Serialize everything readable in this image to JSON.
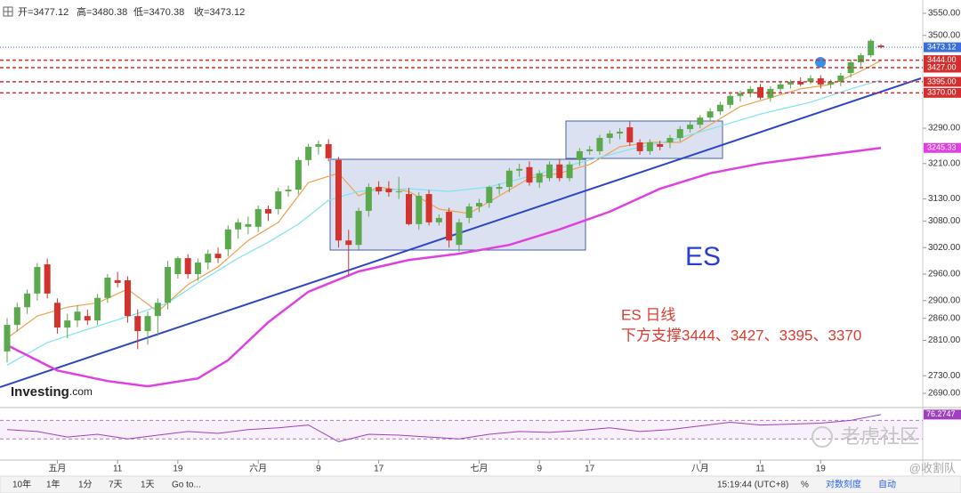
{
  "chart_data": {
    "type": "candlestick",
    "ohlc_labels": [
      "开=",
      "高=",
      "低=",
      "收="
    ],
    "up_color": "#5aa94c",
    "down_color": "#d1332e",
    "categories": [
      null,
      null,
      null,
      null,
      null,
      "五月",
      null,
      null,
      null,
      null,
      null,
      "11",
      null,
      null,
      null,
      null,
      null,
      "19",
      null,
      null,
      null,
      null,
      null,
      null,
      null,
      "六月",
      null,
      null,
      null,
      null,
      null,
      "9",
      null,
      null,
      null,
      null,
      null,
      "17",
      null,
      null,
      null,
      null,
      null,
      null,
      null,
      null,
      null,
      "七月",
      null,
      null,
      null,
      null,
      null,
      "9",
      null,
      null,
      null,
      null,
      "17",
      null,
      null,
      null,
      null,
      null,
      null,
      null,
      null,
      null,
      null,
      "八月",
      null,
      null,
      null,
      null,
      null,
      "11",
      null,
      null,
      null,
      null,
      null,
      "19",
      null,
      null,
      null,
      null,
      null,
      null
    ],
    "candles": [
      [
        2785,
        2860,
        2760,
        2845
      ],
      [
        2845,
        2895,
        2830,
        2885
      ],
      [
        2885,
        2925,
        2870,
        2916
      ],
      [
        2916,
        2985,
        2900,
        2976
      ],
      [
        2982,
        2995,
        2905,
        2916
      ],
      [
        2895,
        2905,
        2825,
        2839
      ],
      [
        2839,
        2870,
        2815,
        2855
      ],
      [
        2855,
        2890,
        2840,
        2875
      ],
      [
        2865,
        2880,
        2845,
        2855
      ],
      [
        2855,
        2915,
        2845,
        2906
      ],
      [
        2906,
        2960,
        2895,
        2952
      ],
      [
        2946,
        2965,
        2930,
        2940
      ],
      [
        2946,
        2955,
        2850,
        2865
      ],
      [
        2865,
        2880,
        2790,
        2831
      ],
      [
        2831,
        2875,
        2800,
        2865
      ],
      [
        2865,
        2905,
        2820,
        2895
      ],
      [
        2895,
        2990,
        2880,
        2976
      ],
      [
        2960,
        3000,
        2950,
        2996
      ],
      [
        2996,
        3005,
        2950,
        2960
      ],
      [
        2960,
        2995,
        2945,
        2986
      ],
      [
        2986,
        3015,
        2970,
        3006
      ],
      [
        3006,
        3020,
        2985,
        2996
      ],
      [
        3016,
        3070,
        3000,
        3061
      ],
      [
        3061,
        3085,
        3040,
        3077
      ],
      [
        3067,
        3090,
        3050,
        3073
      ],
      [
        3067,
        3115,
        3055,
        3107
      ],
      [
        3107,
        3115,
        3080,
        3097
      ],
      [
        3107,
        3155,
        3095,
        3147
      ],
      [
        3147,
        3160,
        3135,
        3151
      ],
      [
        3151,
        3225,
        3140,
        3218
      ],
      [
        3218,
        3255,
        3205,
        3248
      ],
      [
        3248,
        3262,
        3230,
        3254
      ],
      [
        3254,
        3265,
        3215,
        3222
      ],
      [
        3218,
        3225,
        3020,
        3036
      ],
      [
        3036,
        3060,
        2955,
        3026
      ],
      [
        3026,
        3110,
        3015,
        3103
      ],
      [
        3103,
        3165,
        3090,
        3157
      ],
      [
        3157,
        3170,
        3140,
        3147
      ],
      [
        3153,
        3170,
        3135,
        3145
      ],
      [
        3145,
        3180,
        3130,
        3147
      ],
      [
        3141,
        3155,
        3070,
        3073
      ],
      [
        3073,
        3145,
        3060,
        3137
      ],
      [
        3141,
        3150,
        3070,
        3077
      ],
      [
        3077,
        3095,
        3070,
        3087
      ],
      [
        3101,
        3110,
        3020,
        3036
      ],
      [
        3026,
        3085,
        3010,
        3077
      ],
      [
        3087,
        3120,
        3075,
        3113
      ],
      [
        3113,
        3130,
        3100,
        3121
      ],
      [
        3121,
        3160,
        3110,
        3157
      ],
      [
        3153,
        3165,
        3140,
        3157
      ],
      [
        3157,
        3200,
        3145,
        3194
      ],
      [
        3194,
        3210,
        3180,
        3198
      ],
      [
        3202,
        3215,
        3160,
        3167
      ],
      [
        3167,
        3195,
        3155,
        3188
      ],
      [
        3177,
        3215,
        3170,
        3208
      ],
      [
        3208,
        3220,
        3170,
        3177
      ],
      [
        3177,
        3215,
        3170,
        3208
      ],
      [
        3218,
        3245,
        3205,
        3238
      ],
      [
        3238,
        3250,
        3230,
        3242
      ],
      [
        3238,
        3275,
        3230,
        3268
      ],
      [
        3268,
        3285,
        3255,
        3278
      ],
      [
        3278,
        3290,
        3265,
        3282
      ],
      [
        3292,
        3305,
        3250,
        3258
      ],
      [
        3258,
        3265,
        3230,
        3238
      ],
      [
        3238,
        3265,
        3230,
        3258
      ],
      [
        3254,
        3262,
        3240,
        3248
      ],
      [
        3258,
        3275,
        3245,
        3268
      ],
      [
        3268,
        3295,
        3260,
        3288
      ],
      [
        3288,
        3305,
        3280,
        3298
      ],
      [
        3298,
        3320,
        3290,
        3314
      ],
      [
        3314,
        3335,
        3305,
        3328
      ],
      [
        3328,
        3350,
        3320,
        3343
      ],
      [
        3343,
        3370,
        3335,
        3363
      ],
      [
        3363,
        3375,
        3350,
        3369
      ],
      [
        3369,
        3385,
        3360,
        3379
      ],
      [
        3383,
        3390,
        3355,
        3359
      ],
      [
        3359,
        3385,
        3350,
        3379
      ],
      [
        3379,
        3395,
        3370,
        3389
      ],
      [
        3389,
        3400,
        3380,
        3395
      ],
      [
        3395,
        3405,
        3385,
        3389
      ],
      [
        3395,
        3410,
        3390,
        3403
      ],
      [
        3403,
        3410,
        3380,
        3389
      ],
      [
        3389,
        3400,
        3380,
        3395
      ],
      [
        3395,
        3415,
        3385,
        3409
      ],
      [
        3415,
        3445,
        3405,
        3439
      ],
      [
        3439,
        3460,
        3430,
        3455
      ],
      [
        3455,
        3492,
        3450,
        3488
      ],
      [
        3477.12,
        3480.38,
        3470.38,
        3473.12
      ]
    ],
    "lines": [
      {
        "color": "#f0a04b",
        "x": [
          0,
          3,
          6,
          9,
          12,
          15,
          18,
          21,
          24,
          27,
          30,
          33,
          35,
          37,
          40,
          43,
          46,
          49,
          52,
          55,
          58,
          61,
          64,
          67,
          70,
          73,
          76,
          79,
          82,
          85,
          87
        ],
        "values": [
          2815,
          2865,
          2885,
          2895,
          2926,
          2875,
          2936,
          2976,
          3036,
          3077,
          3167,
          3188,
          3137,
          3157,
          3147,
          3107,
          3097,
          3137,
          3177,
          3188,
          3208,
          3248,
          3258,
          3258,
          3298,
          3339,
          3359,
          3379,
          3389,
          3419,
          3443
        ]
      },
      {
        "color": "#7fe3ef",
        "x": [
          0,
          4,
          8,
          13,
          16,
          19,
          23,
          26,
          29,
          32,
          35,
          40,
          44,
          48,
          52,
          57,
          62,
          66,
          70,
          75,
          80,
          84,
          87
        ],
        "values": [
          2754,
          2805,
          2835,
          2871,
          2895,
          2940,
          2996,
          3032,
          3073,
          3127,
          3147,
          3153,
          3147,
          3157,
          3181,
          3212,
          3242,
          3262,
          3288,
          3322,
          3349,
          3379,
          3399
        ]
      },
      {
        "color": "#e040e0",
        "x": [
          0,
          5,
          10,
          14,
          19,
          22,
          26,
          30,
          35,
          40,
          45,
          50,
          55,
          60,
          65,
          70,
          75,
          80,
          87
        ],
        "values": [
          2799,
          2742,
          2718,
          2706,
          2724,
          2765,
          2851,
          2920,
          2966,
          2992,
          3006,
          3026,
          3061,
          3101,
          3153,
          3188,
          3210,
          3225,
          3245.33
        ]
      }
    ],
    "ylim": [
      2666,
      3570
    ],
    "yticks": [
      {
        "value": 3550,
        "label": "3550.00"
      },
      {
        "value": 3500,
        "label": "3500.00"
      },
      {
        "value": 3290,
        "label": "3290.00"
      },
      {
        "value": 3210,
        "label": "3210.00"
      },
      {
        "value": 3130,
        "label": "3130.00"
      },
      {
        "value": 3080,
        "label": "3080.00"
      },
      {
        "value": 3020,
        "label": "3020.00"
      },
      {
        "value": 2960,
        "label": "2960.00"
      },
      {
        "value": 2900,
        "label": "2900.00"
      },
      {
        "value": 2860,
        "label": "2860.00"
      },
      {
        "value": 2810,
        "label": "2810.00"
      },
      {
        "value": 2730,
        "label": "2730.00"
      },
      {
        "value": 2690,
        "label": "2690.00"
      }
    ],
    "support_levels": [
      {
        "value": 3444,
        "label": "3444.00"
      },
      {
        "value": 3427,
        "label": "3427.00"
      },
      {
        "value": 3395,
        "label": "3395.00"
      },
      {
        "value": 3370,
        "label": "3370.00"
      }
    ],
    "symbol": "ES",
    "annotation_title": "ES 日线",
    "annotation_text": "下方支撑3444、3427、3395、3370",
    "logo": [
      "Investing",
      ".com"
    ],
    "rsi": {
      "color": "#a040c0",
      "ylim": [
        30,
        80
      ],
      "levels": [
        70,
        50
      ],
      "x": [
        0,
        3,
        6,
        9,
        12,
        15,
        18,
        21,
        24,
        27,
        30,
        33,
        36,
        39,
        42,
        45,
        48,
        51,
        54,
        57,
        60,
        63,
        66,
        69,
        72,
        75,
        78,
        81,
        84,
        87
      ],
      "values": [
        60,
        58,
        52,
        55,
        50,
        54,
        58,
        56,
        60,
        62,
        65,
        47,
        55,
        54,
        52,
        50,
        55,
        58,
        57,
        59,
        62,
        58,
        60,
        64,
        68,
        65,
        66,
        67,
        70,
        76.2747
      ]
    },
    "watermark": "老虎社区",
    "credit": "@收割队",
    "toolbar_left": [
      "10年",
      "1年",
      "1分",
      "7天",
      "1天",
      "Go to..."
    ],
    "toolbar_right": [
      "15:19:44 (UTC+8)",
      "%",
      "对数刻度",
      "自动"
    ]
  }
}
